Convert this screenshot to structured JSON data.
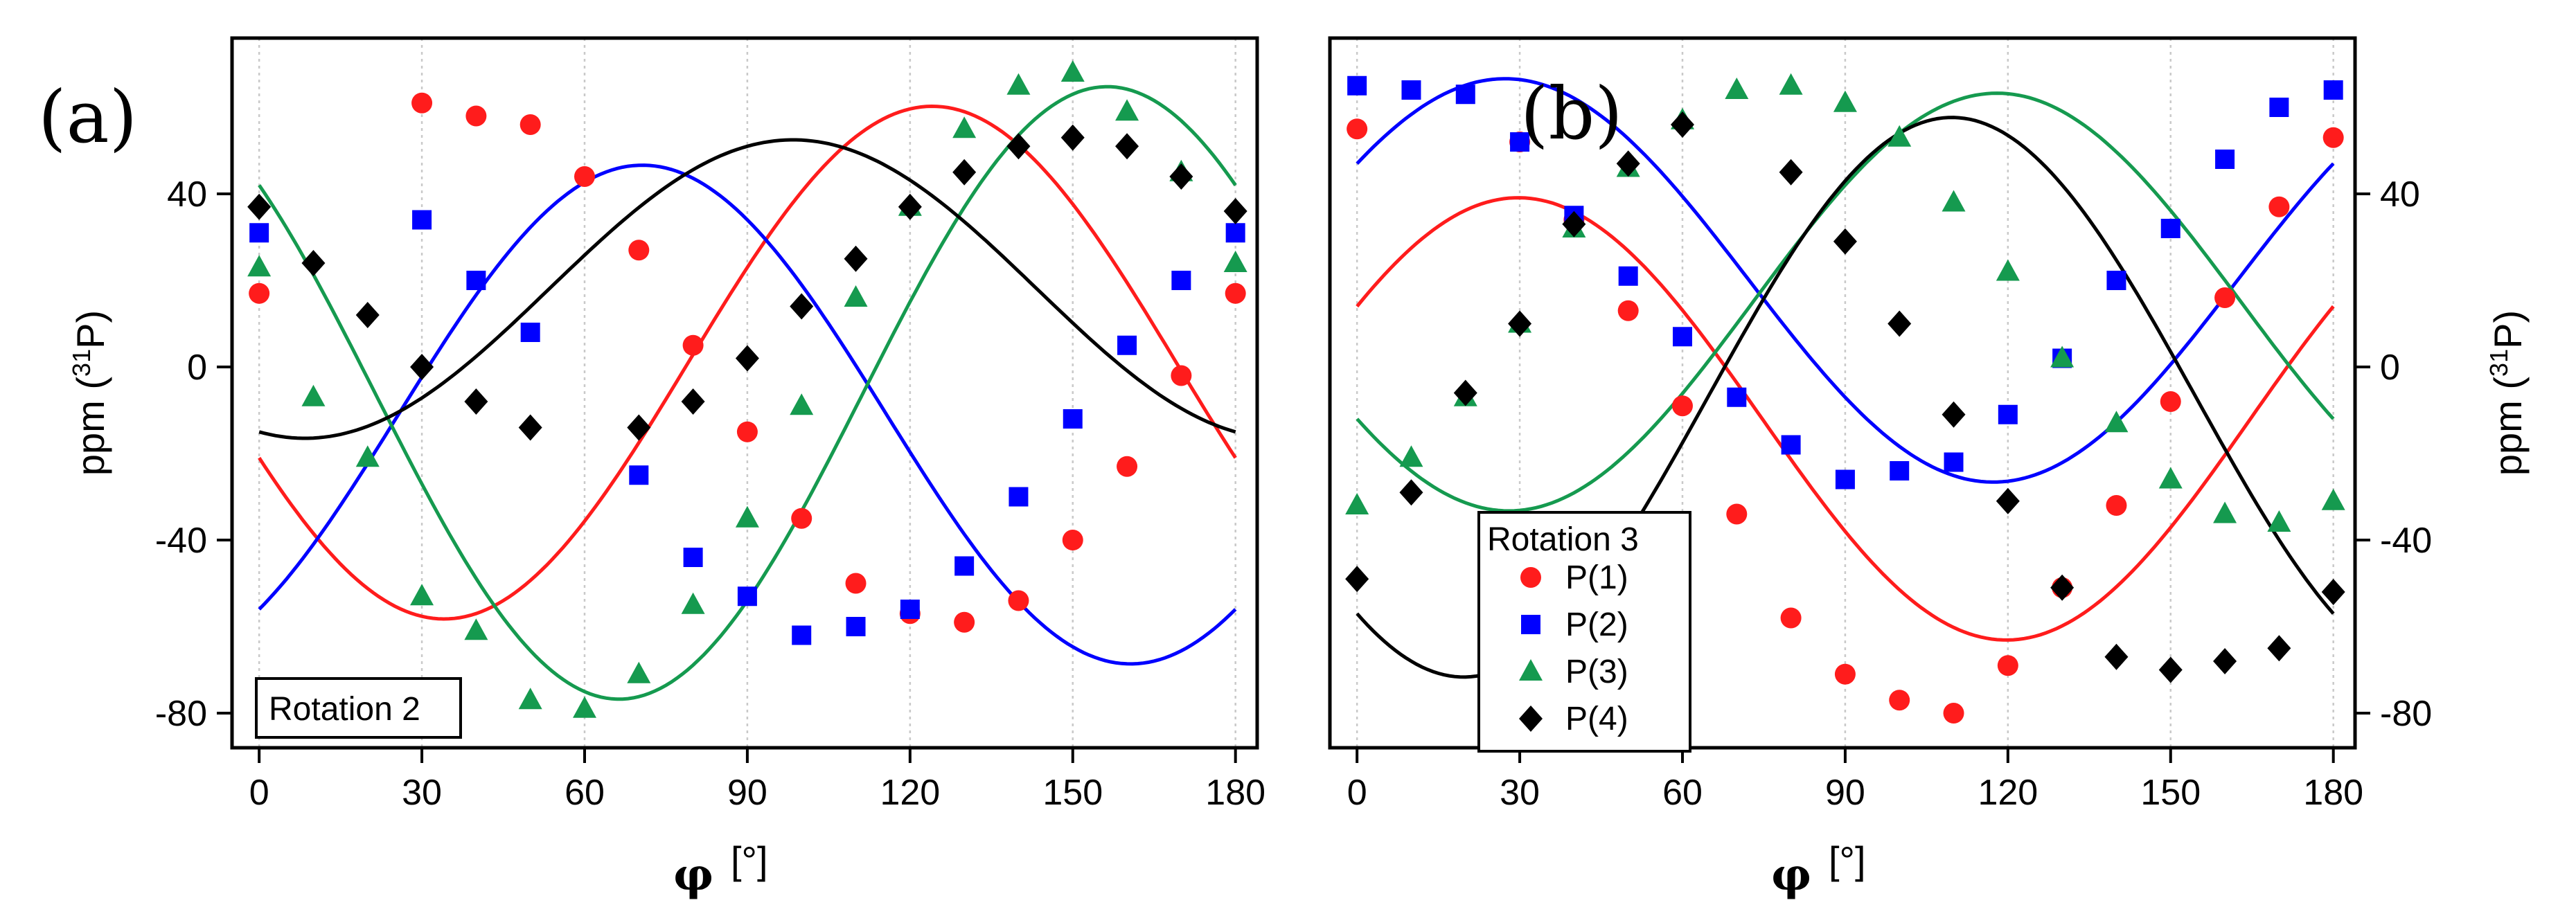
{
  "chart_data": [
    {
      "panel_label": "(a)",
      "type": "scatter",
      "xlabel_symbol": "φ",
      "xlabel_unit": "[°]",
      "ylabel": "ppm (",
      "ylabel_sup": "31",
      "ylabel_end": "P)",
      "xlim": [
        -5,
        184
      ],
      "ylim": [
        -88,
        76
      ],
      "x_ticks": [
        0,
        30,
        60,
        90,
        120,
        150,
        180
      ],
      "y_ticks": [
        40,
        0,
        -40,
        -80
      ],
      "legend_box_label": "Rotation 2",
      "series": [
        {
          "name": "P(1)",
          "marker": "circle",
          "color": "#ff1c1c",
          "x": [
            0,
            30,
            40,
            50,
            60,
            70,
            80,
            90,
            100,
            110,
            120,
            130,
            140,
            150,
            160,
            170,
            180
          ],
          "y": [
            17,
            61,
            58,
            56,
            44,
            27,
            5,
            -15,
            -35,
            -50,
            -57,
            -59,
            -54,
            -40,
            -23,
            -2,
            17
          ]
        },
        {
          "name": "P(2)",
          "marker": "square",
          "color": "#0000ff",
          "x": [
            0,
            30,
            40,
            50,
            70,
            80,
            90,
            100,
            110,
            120,
            130,
            140,
            150,
            160,
            170,
            180
          ],
          "y": [
            31,
            34,
            20,
            8,
            -25,
            -44,
            -53,
            -62,
            -60,
            -56,
            -46,
            -30,
            -12,
            5,
            20,
            31
          ]
        },
        {
          "name": "P(3)",
          "marker": "triangle",
          "color": "#159a4f",
          "x": [
            0,
            10,
            20,
            30,
            40,
            50,
            60,
            70,
            80,
            90,
            100,
            110,
            120,
            130,
            140,
            150,
            160,
            170,
            180
          ],
          "y": [
            23,
            -7,
            -21,
            -53,
            -61,
            -77,
            -79,
            -71,
            -55,
            -35,
            -9,
            16,
            37,
            55,
            65,
            68,
            59,
            45,
            24
          ]
        },
        {
          "name": "P(4)",
          "marker": "diamond",
          "color": "#000000",
          "x": [
            0,
            10,
            20,
            30,
            40,
            50,
            70,
            80,
            90,
            100,
            110,
            120,
            130,
            140,
            150,
            160,
            170,
            180
          ],
          "y": [
            37,
            24,
            12,
            0,
            -8,
            -14,
            -14,
            -8,
            2,
            14,
            25,
            37,
            45,
            51,
            53,
            51,
            44,
            36
          ]
        }
      ],
      "fits": [
        {
          "color": "#ff1c1c",
          "a": 1.0,
          "b": -55.0,
          "c": -22.0
        },
        {
          "color": "#0000ff",
          "a": -11.0,
          "b": 36.0,
          "c": -45.0
        },
        {
          "color": "#159a4f",
          "a": -6.0,
          "b": -52.0,
          "c": 48.0
        },
        {
          "color": "#000000",
          "a": 18.0,
          "b": -10.0,
          "c": -33.0
        }
      ]
    },
    {
      "panel_label": "(b)",
      "type": "scatter",
      "xlabel_symbol": "φ",
      "xlabel_unit": "[°]",
      "ylabel": "ppm (",
      "ylabel_sup": "31",
      "ylabel_end": "P)",
      "xlim": [
        -5,
        184
      ],
      "ylim": [
        -88,
        76
      ],
      "x_ticks": [
        0,
        30,
        60,
        90,
        120,
        150,
        180
      ],
      "y_ticks": [
        40,
        0,
        -40,
        -80
      ],
      "legend": {
        "title": "Rotation 3",
        "entries": [
          "P(1)",
          "P(2)",
          "P(3)",
          "P(4)"
        ]
      },
      "series": [
        {
          "name": "P(1)",
          "marker": "circle",
          "color": "#ff1c1c",
          "x": [
            0,
            30,
            40,
            50,
            60,
            70,
            80,
            90,
            100,
            110,
            120,
            130,
            140,
            150,
            160,
            170,
            180
          ],
          "y": [
            55,
            52,
            34,
            13,
            -9,
            -34,
            -58,
            -71,
            -77,
            -80,
            -69,
            -51,
            -32,
            -8,
            16,
            37,
            53
          ]
        },
        {
          "name": "P(2)",
          "marker": "square",
          "color": "#0000ff",
          "x": [
            0,
            10,
            20,
            30,
            40,
            50,
            60,
            70,
            80,
            90,
            100,
            110,
            120,
            130,
            140,
            150,
            160,
            170,
            180
          ],
          "y": [
            65,
            64,
            63,
            52,
            35,
            21,
            7,
            -7,
            -18,
            -26,
            -24,
            -22,
            -11,
            2,
            20,
            32,
            48,
            60,
            64
          ]
        },
        {
          "name": "P(3)",
          "marker": "triangle",
          "color": "#159a4f",
          "x": [
            0,
            10,
            20,
            30,
            40,
            50,
            60,
            70,
            80,
            90,
            100,
            110,
            120,
            130,
            140,
            150,
            160,
            170,
            180
          ],
          "y": [
            -32,
            -21,
            -7,
            10,
            32,
            46,
            57,
            64,
            65,
            61,
            53,
            38,
            22,
            2,
            -13,
            -26,
            -34,
            -36,
            -31
          ]
        },
        {
          "name": "P(4)",
          "marker": "diamond",
          "color": "#000000",
          "x": [
            0,
            10,
            20,
            30,
            40,
            50,
            60,
            80,
            90,
            100,
            110,
            120,
            130,
            140,
            150,
            160,
            170,
            180
          ],
          "y": [
            -49,
            -29,
            -6,
            10,
            33,
            47,
            56,
            45,
            29,
            10,
            -11,
            -31,
            -51,
            -67,
            -70,
            -68,
            -65,
            -52
          ]
        }
      ],
      "fits": [
        {
          "color": "#ff1c1c",
          "a": -12.0,
          "b": 44.0,
          "c": 26.0
        },
        {
          "color": "#0000ff",
          "a": 20.0,
          "b": 38.0,
          "c": 27.0
        },
        {
          "color": "#159a4f",
          "a": 15.0,
          "b": -40.0,
          "c": -27.0
        },
        {
          "color": "#000000",
          "a": -7.0,
          "b": -41.0,
          "c": -50.0
        }
      ]
    }
  ]
}
